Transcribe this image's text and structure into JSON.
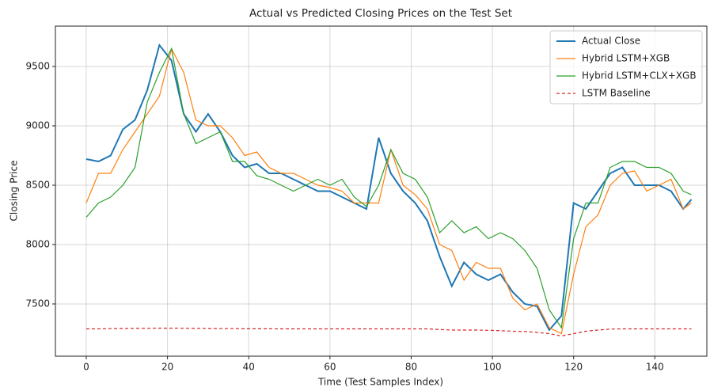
{
  "chart_data": {
    "type": "line",
    "title": "Actual vs Predicted Closing Prices on the Test Set",
    "xlabel": "Time (Test Samples Index)",
    "ylabel": "Closing Price",
    "x": [
      0,
      3,
      6,
      9,
      12,
      15,
      18,
      21,
      24,
      27,
      30,
      33,
      36,
      39,
      42,
      45,
      48,
      51,
      54,
      57,
      60,
      63,
      66,
      69,
      72,
      75,
      78,
      81,
      84,
      87,
      90,
      93,
      96,
      99,
      102,
      105,
      108,
      111,
      114,
      117,
      120,
      123,
      126,
      129,
      132,
      135,
      138,
      141,
      144,
      147,
      149
    ],
    "series": [
      {
        "name": "Actual Close",
        "color": "#1f77b4",
        "width": 2,
        "dash": "none",
        "values": [
          8720,
          8700,
          8750,
          8970,
          9050,
          9300,
          9680,
          9550,
          9100,
          8950,
          9100,
          8950,
          8750,
          8650,
          8680,
          8600,
          8600,
          8550,
          8500,
          8450,
          8450,
          8400,
          8350,
          8300,
          8900,
          8600,
          8450,
          8350,
          8200,
          7900,
          7650,
          7850,
          7750,
          7700,
          7750,
          7600,
          7500,
          7480,
          7280,
          7400,
          8350,
          8300,
          8450,
          8600,
          8650,
          8500,
          8500,
          8500,
          8450,
          8300,
          8380
        ]
      },
      {
        "name": "Hybrid LSTM+XGB",
        "color": "#ff7f0e",
        "width": 1.2,
        "dash": "none",
        "values": [
          8350,
          8600,
          8600,
          8800,
          8950,
          9100,
          9250,
          9650,
          9450,
          9050,
          9000,
          9000,
          8900,
          8750,
          8780,
          8650,
          8600,
          8600,
          8550,
          8500,
          8480,
          8450,
          8350,
          8350,
          8350,
          8800,
          8500,
          8420,
          8300,
          8000,
          7950,
          7700,
          7850,
          7800,
          7800,
          7550,
          7450,
          7500,
          7300,
          7250,
          7750,
          8150,
          8250,
          8500,
          8600,
          8620,
          8450,
          8500,
          8550,
          8300,
          8350
        ]
      },
      {
        "name": "Hybrid LSTM+CLX+XGB",
        "color": "#2ca02c",
        "width": 1.2,
        "dash": "none",
        "values": [
          8230,
          8350,
          8400,
          8500,
          8650,
          9200,
          9450,
          9650,
          9100,
          8850,
          8900,
          8950,
          8700,
          8700,
          8580,
          8550,
          8500,
          8450,
          8500,
          8550,
          8500,
          8550,
          8400,
          8320,
          8500,
          8800,
          8600,
          8550,
          8400,
          8100,
          8200,
          8100,
          8150,
          8050,
          8100,
          8050,
          7950,
          7800,
          7450,
          7300,
          8050,
          8350,
          8350,
          8650,
          8700,
          8700,
          8650,
          8650,
          8600,
          8450,
          8420
        ]
      },
      {
        "name": "LSTM Baseline",
        "color": "#d62728",
        "width": 1.2,
        "dash": "4 3",
        "values": [
          7290,
          7290,
          7292,
          7293,
          7294,
          7295,
          7296,
          7296,
          7295,
          7294,
          7293,
          7292,
          7292,
          7291,
          7291,
          7291,
          7290,
          7290,
          7290,
          7290,
          7290,
          7290,
          7290,
          7290,
          7290,
          7290,
          7290,
          7290,
          7290,
          7285,
          7280,
          7280,
          7280,
          7278,
          7275,
          7270,
          7268,
          7260,
          7250,
          7230,
          7250,
          7270,
          7280,
          7288,
          7290,
          7290,
          7290,
          7290,
          7290,
          7290,
          7290
        ]
      }
    ],
    "xlim": [
      -7.6,
      152.8
    ],
    "ylim": [
      7060,
      9840
    ],
    "xticks": [
      0,
      20,
      40,
      60,
      80,
      100,
      120,
      140
    ],
    "yticks": [
      7500,
      8000,
      8500,
      9000,
      9500
    ],
    "grid": true,
    "legend": "upper right"
  }
}
